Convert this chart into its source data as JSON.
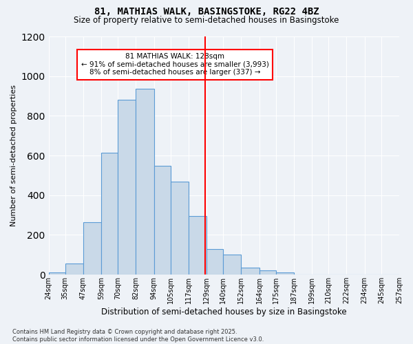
{
  "title_line1": "81, MATHIAS WALK, BASINGSTOKE, RG22 4BZ",
  "title_line2": "Size of property relative to semi-detached houses in Basingstoke",
  "xlabel": "Distribution of semi-detached houses by size in Basingstoke",
  "ylabel": "Number of semi-detached properties",
  "bin_labels": [
    "24sqm",
    "35sqm",
    "47sqm",
    "59sqm",
    "70sqm",
    "82sqm",
    "94sqm",
    "105sqm",
    "117sqm",
    "129sqm",
    "140sqm",
    "152sqm",
    "164sqm",
    "175sqm",
    "187sqm",
    "199sqm",
    "210sqm",
    "222sqm",
    "234sqm",
    "245sqm",
    "257sqm"
  ],
  "bin_edges": [
    24,
    35,
    47,
    59,
    70,
    82,
    94,
    105,
    117,
    129,
    140,
    152,
    164,
    175,
    187,
    199,
    210,
    222,
    234,
    245,
    257
  ],
  "bar_vals": [
    10,
    55,
    265,
    615,
    880,
    935,
    550,
    470,
    295,
    130,
    100,
    35,
    20,
    10,
    0,
    0,
    0,
    0,
    0,
    0
  ],
  "bar_color": "#c9d9e8",
  "bar_edge_color": "#5b9bd5",
  "vline_x": 128,
  "vline_color": "red",
  "annotation_text_line1": "81 MATHIAS WALK: 128sqm",
  "annotation_text_line2": "← 91% of semi-detached houses are smaller (3,993)",
  "annotation_text_line3": "8% of semi-detached houses are larger (337) →",
  "ylim": [
    0,
    1200
  ],
  "yticks": [
    0,
    200,
    400,
    600,
    800,
    1000,
    1200
  ],
  "footer_text": "Contains HM Land Registry data © Crown copyright and database right 2025.\nContains public sector information licensed under the Open Government Licence v3.0.",
  "bg_color": "#eef2f7",
  "grid_color": "white"
}
